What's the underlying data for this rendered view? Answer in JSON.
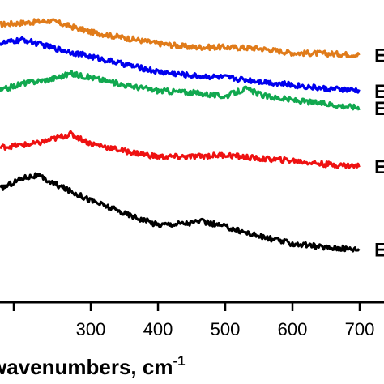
{
  "chart_data": {
    "type": "line",
    "xlabel": "wavenumbers, cm",
    "xlabel_sup": "-1",
    "xlim": [
      165,
      700
    ],
    "x_ticks": [
      300,
      400,
      500,
      600,
      700
    ],
    "x_tick_labels": [
      "300",
      "400",
      "500",
      "600",
      "700"
    ],
    "ylabel": "",
    "y_axis_visible": false,
    "grid": false,
    "legend": "none; series tagged at right edge (tags cropped)",
    "series": [
      {
        "color": "#e07b1a",
        "tag": "E",
        "points": [
          [
            165,
            7.35
          ],
          [
            240,
            7.45
          ],
          [
            300,
            7.15
          ],
          [
            350,
            7.0
          ],
          [
            400,
            6.85
          ],
          [
            450,
            6.75
          ],
          [
            500,
            6.75
          ],
          [
            550,
            6.72
          ],
          [
            600,
            6.6
          ],
          [
            650,
            6.58
          ],
          [
            700,
            6.55
          ]
        ]
      },
      {
        "color": "#0000ee",
        "tag": "E",
        "points": [
          [
            165,
            6.85
          ],
          [
            200,
            6.95
          ],
          [
            240,
            6.75
          ],
          [
            300,
            6.5
          ],
          [
            350,
            6.3
          ],
          [
            400,
            6.1
          ],
          [
            450,
            6.0
          ],
          [
            500,
            5.95
          ],
          [
            550,
            5.85
          ],
          [
            600,
            5.75
          ],
          [
            650,
            5.65
          ],
          [
            700,
            5.6
          ]
        ]
      },
      {
        "color": "#11a84f",
        "tag": "E",
        "points": [
          [
            165,
            5.6
          ],
          [
            200,
            5.8
          ],
          [
            240,
            5.9
          ],
          [
            270,
            6.05
          ],
          [
            300,
            5.95
          ],
          [
            350,
            5.75
          ],
          [
            400,
            5.6
          ],
          [
            450,
            5.55
          ],
          [
            500,
            5.45
          ],
          [
            530,
            5.65
          ],
          [
            560,
            5.45
          ],
          [
            600,
            5.35
          ],
          [
            650,
            5.25
          ],
          [
            700,
            5.15
          ]
        ]
      },
      {
        "color": "#ee1111",
        "tag": "E",
        "points": [
          [
            165,
            4.1
          ],
          [
            220,
            4.2
          ],
          [
            270,
            4.45
          ],
          [
            300,
            4.2
          ],
          [
            350,
            4.0
          ],
          [
            400,
            3.85
          ],
          [
            450,
            3.85
          ],
          [
            500,
            3.9
          ],
          [
            550,
            3.8
          ],
          [
            600,
            3.75
          ],
          [
            650,
            3.65
          ],
          [
            700,
            3.6
          ]
        ]
      },
      {
        "color": "#000000",
        "tag": "E",
        "points": [
          [
            165,
            3.0
          ],
          [
            200,
            3.3
          ],
          [
            220,
            3.35
          ],
          [
            250,
            3.1
          ],
          [
            300,
            2.7
          ],
          [
            350,
            2.35
          ],
          [
            400,
            2.05
          ],
          [
            450,
            2.1
          ],
          [
            460,
            2.15
          ],
          [
            500,
            2.0
          ],
          [
            550,
            1.75
          ],
          [
            600,
            1.55
          ],
          [
            650,
            1.45
          ],
          [
            700,
            1.4
          ]
        ]
      }
    ]
  }
}
